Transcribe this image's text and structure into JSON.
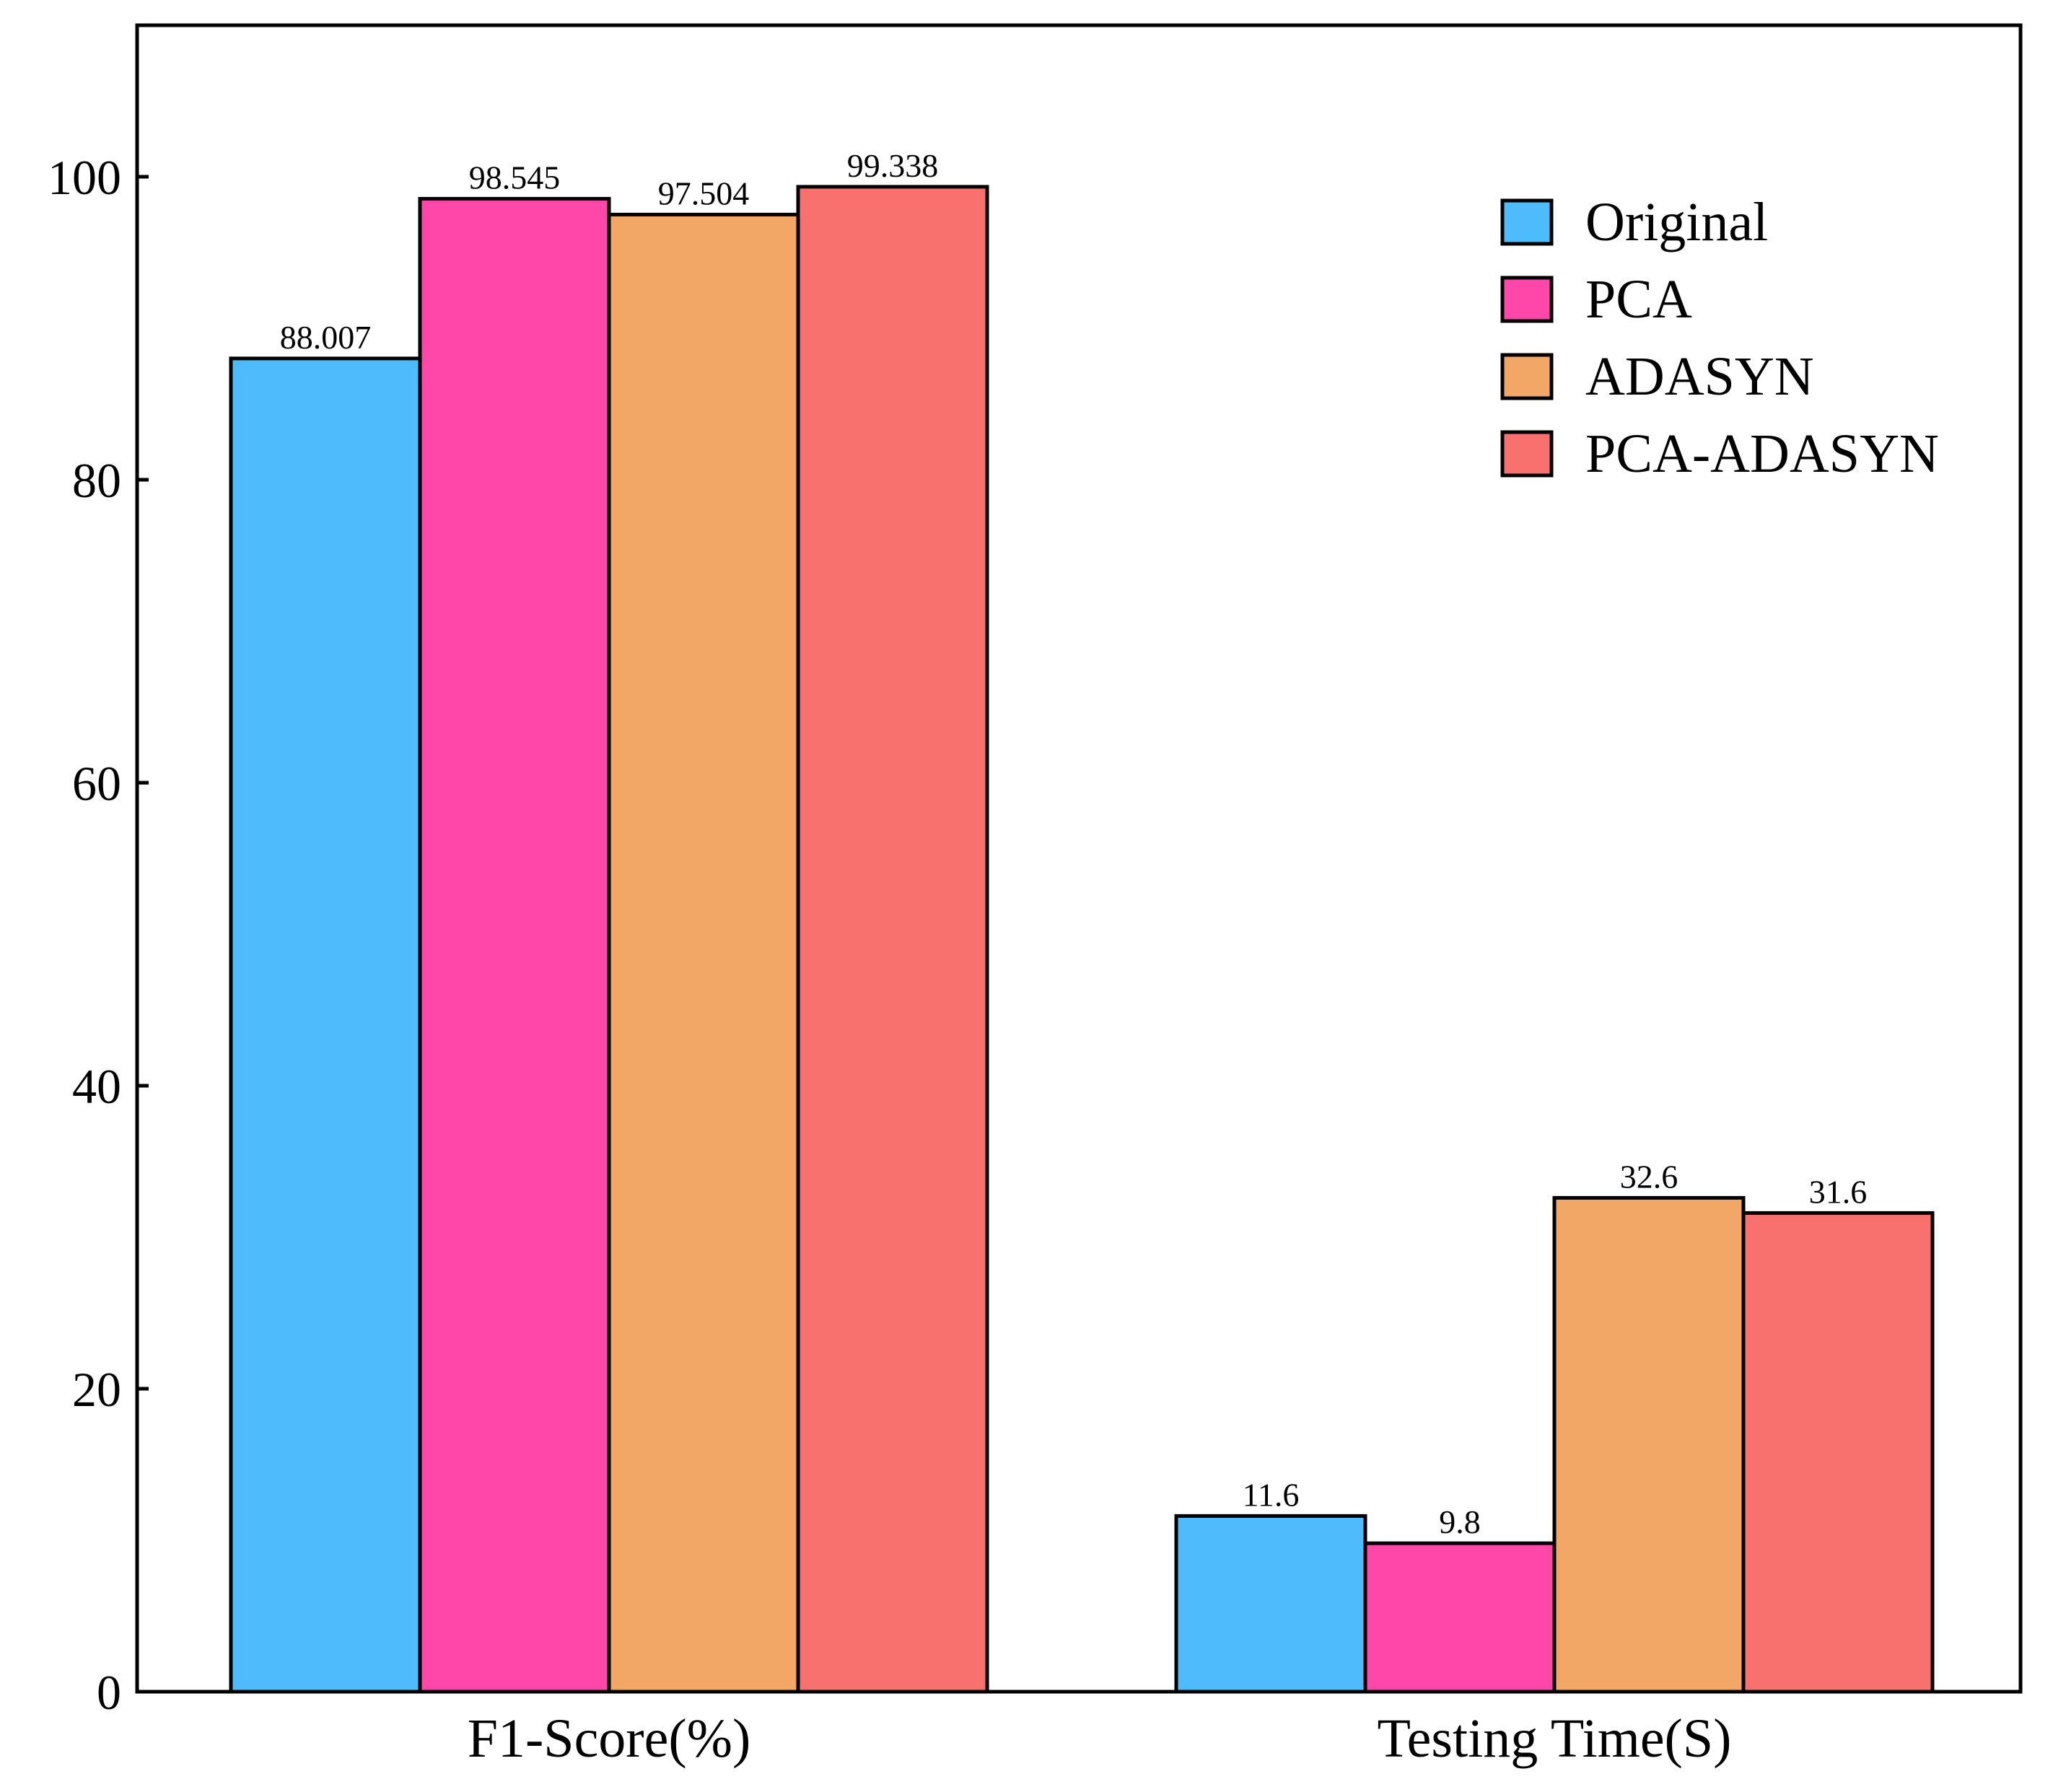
{
  "chart_data": {
    "type": "bar",
    "title": "",
    "xlabel": "",
    "ylabel": "",
    "categories": [
      "F1-Score(%)",
      "Testing Time(S)"
    ],
    "ylim": [
      0,
      110
    ],
    "yticks": [
      0,
      20,
      40,
      60,
      80,
      100
    ],
    "grid": false,
    "legend_position": "top-right",
    "series": [
      {
        "name": "Original",
        "color": "#4DBBFC",
        "values": [
          88.007,
          11.6
        ],
        "labels": [
          "88.007",
          "11.6"
        ]
      },
      {
        "name": "PCA",
        "color": "#FF46A9",
        "values": [
          98.545,
          9.8
        ],
        "labels": [
          "98.545",
          "9.8"
        ]
      },
      {
        "name": "ADASYN",
        "color": "#F2A766",
        "values": [
          97.504,
          32.6
        ],
        "labels": [
          "97.504",
          "32.6"
        ]
      },
      {
        "name": "PCA-ADASYN",
        "color": "#F9716F",
        "values": [
          99.338,
          31.6
        ],
        "labels": [
          "99.338",
          "31.6"
        ]
      }
    ]
  }
}
